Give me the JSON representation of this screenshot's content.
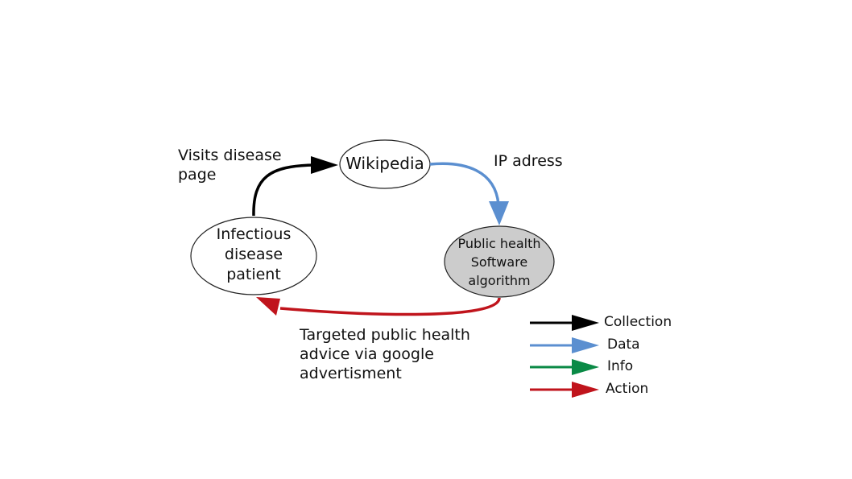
{
  "nodes": {
    "wikipedia": {
      "label": "Wikipedia"
    },
    "patient": {
      "label": "Infectious\ndisease\npatient"
    },
    "algorithm": {
      "label": "Public health\nSoftware\nalgorithm",
      "fill": "#cccccc"
    }
  },
  "edges": {
    "visits": {
      "label": "Visits disease\npage",
      "color": "#000000"
    },
    "ip": {
      "label": "IP adress",
      "color": "#5b8fd0"
    },
    "advice": {
      "label": "Targeted public health\nadvice via google\nadvertisment",
      "color": "#c0141c"
    }
  },
  "legend": {
    "items": [
      {
        "label": "Collection",
        "color": "#000000"
      },
      {
        "label": "Data",
        "color": "#5b8fd0"
      },
      {
        "label": "Info",
        "color": "#0a8a46"
      },
      {
        "label": "Action",
        "color": "#c0141c"
      }
    ]
  }
}
